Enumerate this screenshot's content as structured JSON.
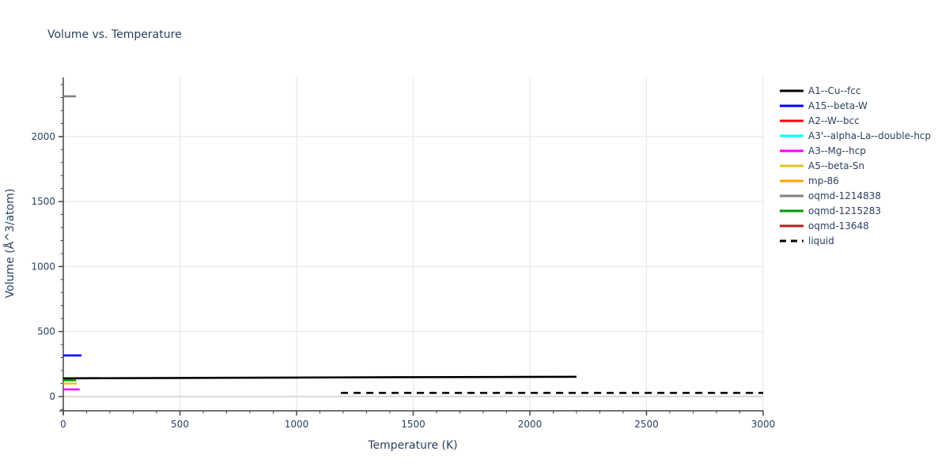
{
  "colors": {
    "text": "#2a3f5f",
    "axis_line": "#444444",
    "grid": "#e9e9e9",
    "zero_line": "#d8d8d8",
    "background": "#ffffff"
  },
  "chart_data": {
    "type": "line",
    "title": "Volume vs. Temperature",
    "xlabel": "Temperature (K)",
    "ylabel": "Volume (Å^3/atom)",
    "xlim": [
      0,
      3000
    ],
    "ylim": [
      -110,
      2455
    ],
    "x_ticks": [
      0,
      500,
      1000,
      1500,
      2000,
      2500,
      3000
    ],
    "y_ticks": [
      0,
      500,
      1000,
      1500,
      2000
    ],
    "minor_tick_step": 100,
    "grid": true,
    "legend_position": "right",
    "series": [
      {
        "name": "A1--Cu--fcc",
        "color": "#000000",
        "dash": "solid",
        "points": [
          [
            0,
            140
          ],
          [
            500,
            143
          ],
          [
            1000,
            146
          ],
          [
            1500,
            149
          ],
          [
            2000,
            151
          ],
          [
            2200,
            152
          ]
        ]
      },
      {
        "name": "A15--beta-W",
        "color": "#0000ff",
        "dash": "solid",
        "points": [
          [
            0,
            316
          ],
          [
            78,
            316
          ]
        ]
      },
      {
        "name": "A2--W--bcc",
        "color": "#ff0000",
        "dash": "solid",
        "points": []
      },
      {
        "name": "A3'--alpha-La--double-hcp",
        "color": "#00ffff",
        "dash": "solid",
        "points": []
      },
      {
        "name": "A3--Mg--hcp",
        "color": "#ff00ff",
        "dash": "solid",
        "points": [
          [
            0,
            55
          ],
          [
            70,
            55
          ]
        ]
      },
      {
        "name": "A5--beta-Sn",
        "color": "#e3c01f",
        "dash": "solid",
        "points": [
          [
            0,
            100
          ],
          [
            58,
            100
          ]
        ]
      },
      {
        "name": "mp-86",
        "color": "#ffa500",
        "dash": "solid",
        "points": []
      },
      {
        "name": "oqmd-1214838",
        "color": "#808080",
        "dash": "solid",
        "points": [
          [
            0,
            2310
          ],
          [
            55,
            2310
          ]
        ]
      },
      {
        "name": "oqmd-1215283",
        "color": "#009900",
        "dash": "solid",
        "points": [
          [
            0,
            125
          ],
          [
            55,
            125
          ]
        ]
      },
      {
        "name": "oqmd-13648",
        "color": "#b22222",
        "dash": "solid",
        "points": []
      },
      {
        "name": "liquid",
        "color": "#000000",
        "dash": "dashed",
        "points": [
          [
            1190,
            28
          ],
          [
            3000,
            28
          ]
        ]
      }
    ],
    "hidden_series_note": "Series with empty points appear in the legend but have no visibly distinct curve in the plot (overlapped near the origin)."
  }
}
